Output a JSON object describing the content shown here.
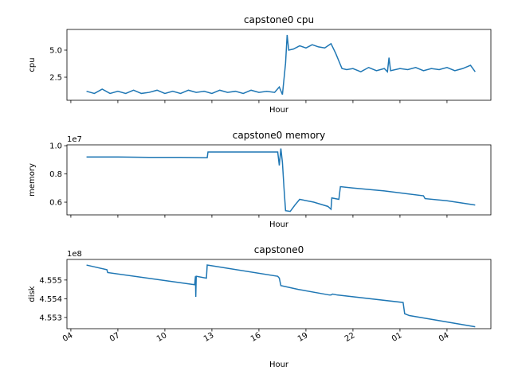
{
  "chart_data": [
    {
      "type": "line",
      "title": "capstone0 cpu",
      "ylabel": "cpu",
      "xlabel": "Hour",
      "xlim": [
        3.75,
        30.8
      ],
      "xticks": [
        4,
        7,
        10,
        13,
        16,
        19,
        22,
        25,
        28
      ],
      "xtick_labels": false,
      "ylim": [
        0.37,
        6.91
      ],
      "yticks": [
        2.5,
        {
          "value": 5,
          "label": "5.0"
        }
      ],
      "series": [
        {
          "color": "#1f77b4",
          "x": [
            5,
            5.5,
            6,
            6.5,
            7,
            7.5,
            8,
            8.5,
            9,
            9.5,
            10,
            10.5,
            11,
            11.5,
            12,
            12.5,
            13,
            13.5,
            14,
            14.5,
            15,
            15.5,
            16,
            16.5,
            17,
            17.3,
            17.5,
            17.7,
            17.8,
            17.9,
            18.2,
            18.6,
            19,
            19.4,
            19.8,
            20.2,
            20.6,
            20.9,
            21.1,
            21.3,
            21.6,
            22,
            22.5,
            23,
            23.5,
            24,
            24.2,
            24.3,
            24.4,
            25,
            25.5,
            26,
            26.5,
            27,
            27.5,
            28,
            28.5,
            29,
            29.5,
            29.8
          ],
          "values": [
            1.2,
            1.0,
            1.4,
            1.0,
            1.2,
            1.0,
            1.3,
            1.0,
            1.1,
            1.3,
            1.0,
            1.2,
            1.0,
            1.3,
            1.1,
            1.2,
            1.0,
            1.3,
            1.1,
            1.2,
            1.0,
            1.3,
            1.1,
            1.2,
            1.1,
            1.6,
            0.9,
            3.8,
            6.4,
            5.0,
            5.1,
            5.4,
            5.2,
            5.5,
            5.3,
            5.2,
            5.6,
            4.7,
            4.0,
            3.3,
            3.2,
            3.3,
            3.0,
            3.4,
            3.1,
            3.3,
            3.0,
            4.3,
            3.1,
            3.3,
            3.2,
            3.4,
            3.1,
            3.3,
            3.2,
            3.4,
            3.1,
            3.3,
            3.6,
            3.0
          ]
        }
      ]
    },
    {
      "type": "line",
      "title": "capstone0 memory",
      "ylabel": "memory",
      "xlabel": "Hour",
      "offset_label": "1e7",
      "xlim": [
        3.75,
        30.8
      ],
      "xticks": [
        4,
        7,
        10,
        13,
        16,
        19,
        22,
        25,
        28
      ],
      "xtick_labels": false,
      "ylim": [
        0.51,
        1.006
      ],
      "yticks": [
        0.6,
        0.8,
        {
          "value": 1,
          "label": "1.0"
        }
      ],
      "series": [
        {
          "color": "#1f77b4",
          "x": [
            5,
            7,
            9,
            11,
            12.7,
            12.75,
            15,
            17.2,
            17.3,
            17.4,
            17.5,
            17.6,
            17.7,
            18,
            18.3,
            18.6,
            19.5,
            20.4,
            20.6,
            20.65,
            21.1,
            21.2,
            22,
            24,
            26.5,
            26.6,
            28,
            29.8
          ],
          "values": [
            0.92,
            0.92,
            0.917,
            0.917,
            0.915,
            0.955,
            0.955,
            0.955,
            0.86,
            0.98,
            0.88,
            0.7,
            0.54,
            0.535,
            0.58,
            0.62,
            0.6,
            0.57,
            0.55,
            0.63,
            0.62,
            0.71,
            0.7,
            0.68,
            0.645,
            0.625,
            0.61,
            0.58
          ]
        }
      ]
    },
    {
      "type": "line",
      "title": "capstone0",
      "ylabel": "disk",
      "xlabel": "Hour",
      "offset_label": "1e8",
      "xlim": [
        3.75,
        30.8
      ],
      "xticks": [
        {
          "value": 4,
          "label": "04"
        },
        {
          "value": 7,
          "label": "07"
        },
        10,
        13,
        16,
        19,
        22,
        {
          "value": 25,
          "label": "01"
        },
        {
          "value": 28,
          "label": "04"
        }
      ],
      "xtick_labels": true,
      "ylim": [
        4.5524,
        4.5561
      ],
      "yticks": [
        4.553,
        4.554,
        4.555
      ],
      "series": [
        {
          "color": "#1f77b4",
          "x": [
            5,
            6.3,
            6.35,
            11.9,
            11.95,
            11.97,
            12.0,
            12.65,
            12.7,
            17.2,
            17.3,
            17.4,
            18.5,
            20.5,
            20.6,
            20.7,
            21.0,
            25.2,
            25.3,
            25.6,
            29.8
          ],
          "values": [
            4.5558,
            4.55555,
            4.5554,
            4.55475,
            4.5552,
            4.5541,
            4.5552,
            4.5551,
            4.5558,
            4.5552,
            4.5551,
            4.5547,
            4.5545,
            4.5542,
            4.5542,
            4.55425,
            4.5542,
            4.5538,
            4.5532,
            4.5531,
            4.5525
          ]
        }
      ]
    }
  ]
}
